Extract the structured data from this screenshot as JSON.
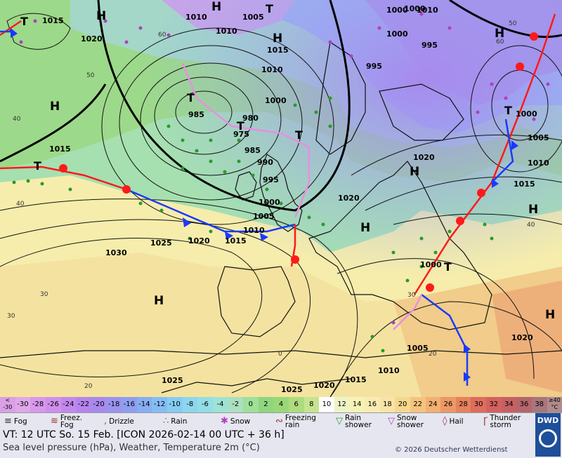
{
  "map": {
    "pressure_labels": {
      "p1": "1015",
      "p2": "1020",
      "p3": "1010",
      "p4": "1005",
      "p5": "1010",
      "p6": "1015",
      "p7": "1000",
      "p8": "1000",
      "p9": "995",
      "p10": "1010",
      "p11": "1000",
      "p12": "995",
      "p13": "1000",
      "p14": "985",
      "p15": "980",
      "p16": "975",
      "p17": "985",
      "p18": "990",
      "p19": "995",
      "p20": "1000",
      "p21": "1005",
      "p22": "1015",
      "p23": "1010",
      "p24": "1025",
      "p25": "1020",
      "p26": "1015",
      "p27": "1030",
      "p28": "1020",
      "p29": "1000",
      "p30": "1000",
      "p31": "1005",
      "p32": "1010",
      "p33": "1015",
      "p34": "1020",
      "p35": "1005",
      "p36": "1010",
      "p37": "1025",
      "p38": "1020",
      "p39": "1015",
      "p40": "1025",
      "p41": "1010",
      "p42": "1020"
    },
    "highs": [
      "H",
      "H",
      "H",
      "H",
      "H",
      "H",
      "H",
      "H",
      "H",
      "H"
    ],
    "lows": [
      "T",
      "T",
      "T",
      "T",
      "T",
      "T",
      "T",
      "T"
    ],
    "temp_labels": {
      "t1": "50",
      "t2": "60",
      "t3": "40",
      "t4": "40",
      "t5": "30",
      "t6": "20",
      "t7": "0",
      "t8": "30",
      "t9": "20",
      "t10": "50",
      "t11": "60",
      "t12": "40",
      "t13": "30"
    }
  },
  "legend": {
    "scale": [
      "< -30",
      "-30",
      "-28",
      "-26",
      "-24",
      "-22",
      "-20",
      "-18",
      "-16",
      "-14",
      "-12",
      "-10",
      "-8",
      "-6",
      "-4",
      "-2",
      "0",
      "2",
      "4",
      "6",
      "8",
      "10",
      "12",
      "14",
      "16",
      "18",
      "20",
      "22",
      "24",
      "26",
      "28",
      "30",
      "32",
      "34",
      "36",
      "38",
      "≥40 °C"
    ],
    "scale_colors": [
      "#d9a0e6",
      "#e0a8ea",
      "#d898ec",
      "#cf90ec",
      "#c488ec",
      "#b585ee",
      "#a88aee",
      "#9b94ef",
      "#8e9ff0",
      "#87aef2",
      "#85bdf3",
      "#86ccf2",
      "#8dd6ee",
      "#95dde6",
      "#9fe2d6",
      "#acdfc0",
      "#9fe09a",
      "#8fd67e",
      "#9ad877",
      "#aedb7d",
      "#c6e48f",
      "#ffffff",
      "#eef4c8",
      "#f6f2b3",
      "#f8ecb2",
      "#f7e4a6",
      "#f5d88e",
      "#f4c47e",
      "#f2b071",
      "#ec9867",
      "#e6825e",
      "#de6d5c",
      "#d4625e",
      "#c66163",
      "#b4666c",
      "#a8767c",
      "#b08a8c"
    ],
    "weather": [
      {
        "label": "Fog",
        "icon": "fog-icon"
      },
      {
        "label": "Freez. Fog",
        "icon": "freezing-fog-icon"
      },
      {
        "label": "Drizzle",
        "icon": "drizzle-icon"
      },
      {
        "label": "Rain",
        "icon": "rain-icon"
      },
      {
        "label": "Snow",
        "icon": "snow-icon"
      },
      {
        "label": "Freezing rain",
        "icon": "freezing-rain-icon"
      },
      {
        "label": "Rain shower",
        "icon": "rain-shower-icon"
      },
      {
        "label": "Snow shower",
        "icon": "snow-shower-icon"
      },
      {
        "label": "Hail",
        "icon": "hail-icon"
      },
      {
        "label": "Thunder storm",
        "icon": "thunderstorm-icon"
      }
    ],
    "valid_time": "VT: 12 UTC So.   15 Feb. [ICON 2026-02-14  00 UTC + 36 h]",
    "subtitle": "Sea level pressure (hPa), Weather, Temperature 2m (°C)",
    "copyright": "© 2026 Deutscher Wetterdienst",
    "logo_text": "DWD"
  }
}
